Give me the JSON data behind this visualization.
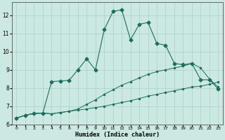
{
  "xlabel": "Humidex (Indice chaleur)",
  "bg_color": "#cce8e2",
  "grid_color": "#a8d0c8",
  "line_color": "#1a6e5e",
  "xlim": [
    -0.5,
    23.5
  ],
  "ylim": [
    6.0,
    12.7
  ],
  "xticks": [
    0,
    1,
    2,
    3,
    4,
    5,
    6,
    7,
    8,
    9,
    10,
    11,
    12,
    13,
    14,
    15,
    16,
    17,
    18,
    19,
    20,
    21,
    22,
    23
  ],
  "yticks": [
    6,
    7,
    8,
    9,
    10,
    11,
    12
  ],
  "line_bottom_x": [
    0,
    1,
    2,
    3,
    4,
    5,
    6,
    7,
    8,
    9,
    10,
    11,
    12,
    13,
    14,
    15,
    16,
    17,
    18,
    19,
    20,
    21,
    22,
    23
  ],
  "line_bottom_y": [
    6.35,
    6.5,
    6.6,
    6.62,
    6.58,
    6.65,
    6.72,
    6.78,
    6.85,
    6.92,
    7.0,
    7.1,
    7.2,
    7.3,
    7.42,
    7.55,
    7.65,
    7.75,
    7.85,
    7.95,
    8.05,
    8.1,
    8.2,
    8.32
  ],
  "line_mid_x": [
    0,
    1,
    2,
    3,
    4,
    5,
    6,
    7,
    8,
    9,
    10,
    11,
    12,
    13,
    14,
    15,
    16,
    17,
    18,
    19,
    20,
    21,
    22,
    23
  ],
  "line_mid_y": [
    6.35,
    6.5,
    6.6,
    6.62,
    6.58,
    6.65,
    6.72,
    6.85,
    7.1,
    7.35,
    7.65,
    7.9,
    8.15,
    8.35,
    8.55,
    8.75,
    8.9,
    9.0,
    9.1,
    9.2,
    9.35,
    9.1,
    8.5,
    8.05
  ],
  "line_top_x": [
    0,
    1,
    2,
    3,
    4,
    5,
    6,
    7,
    8,
    9,
    10,
    11,
    12,
    13,
    14,
    15,
    16,
    17,
    18,
    19,
    20,
    21,
    22,
    23
  ],
  "line_top_y": [
    6.35,
    6.5,
    6.6,
    6.62,
    8.35,
    8.38,
    8.42,
    9.0,
    9.6,
    9.0,
    11.2,
    12.2,
    12.3,
    10.65,
    11.5,
    11.6,
    10.45,
    10.35,
    9.35,
    9.28,
    9.35,
    8.45,
    8.45,
    7.95
  ]
}
